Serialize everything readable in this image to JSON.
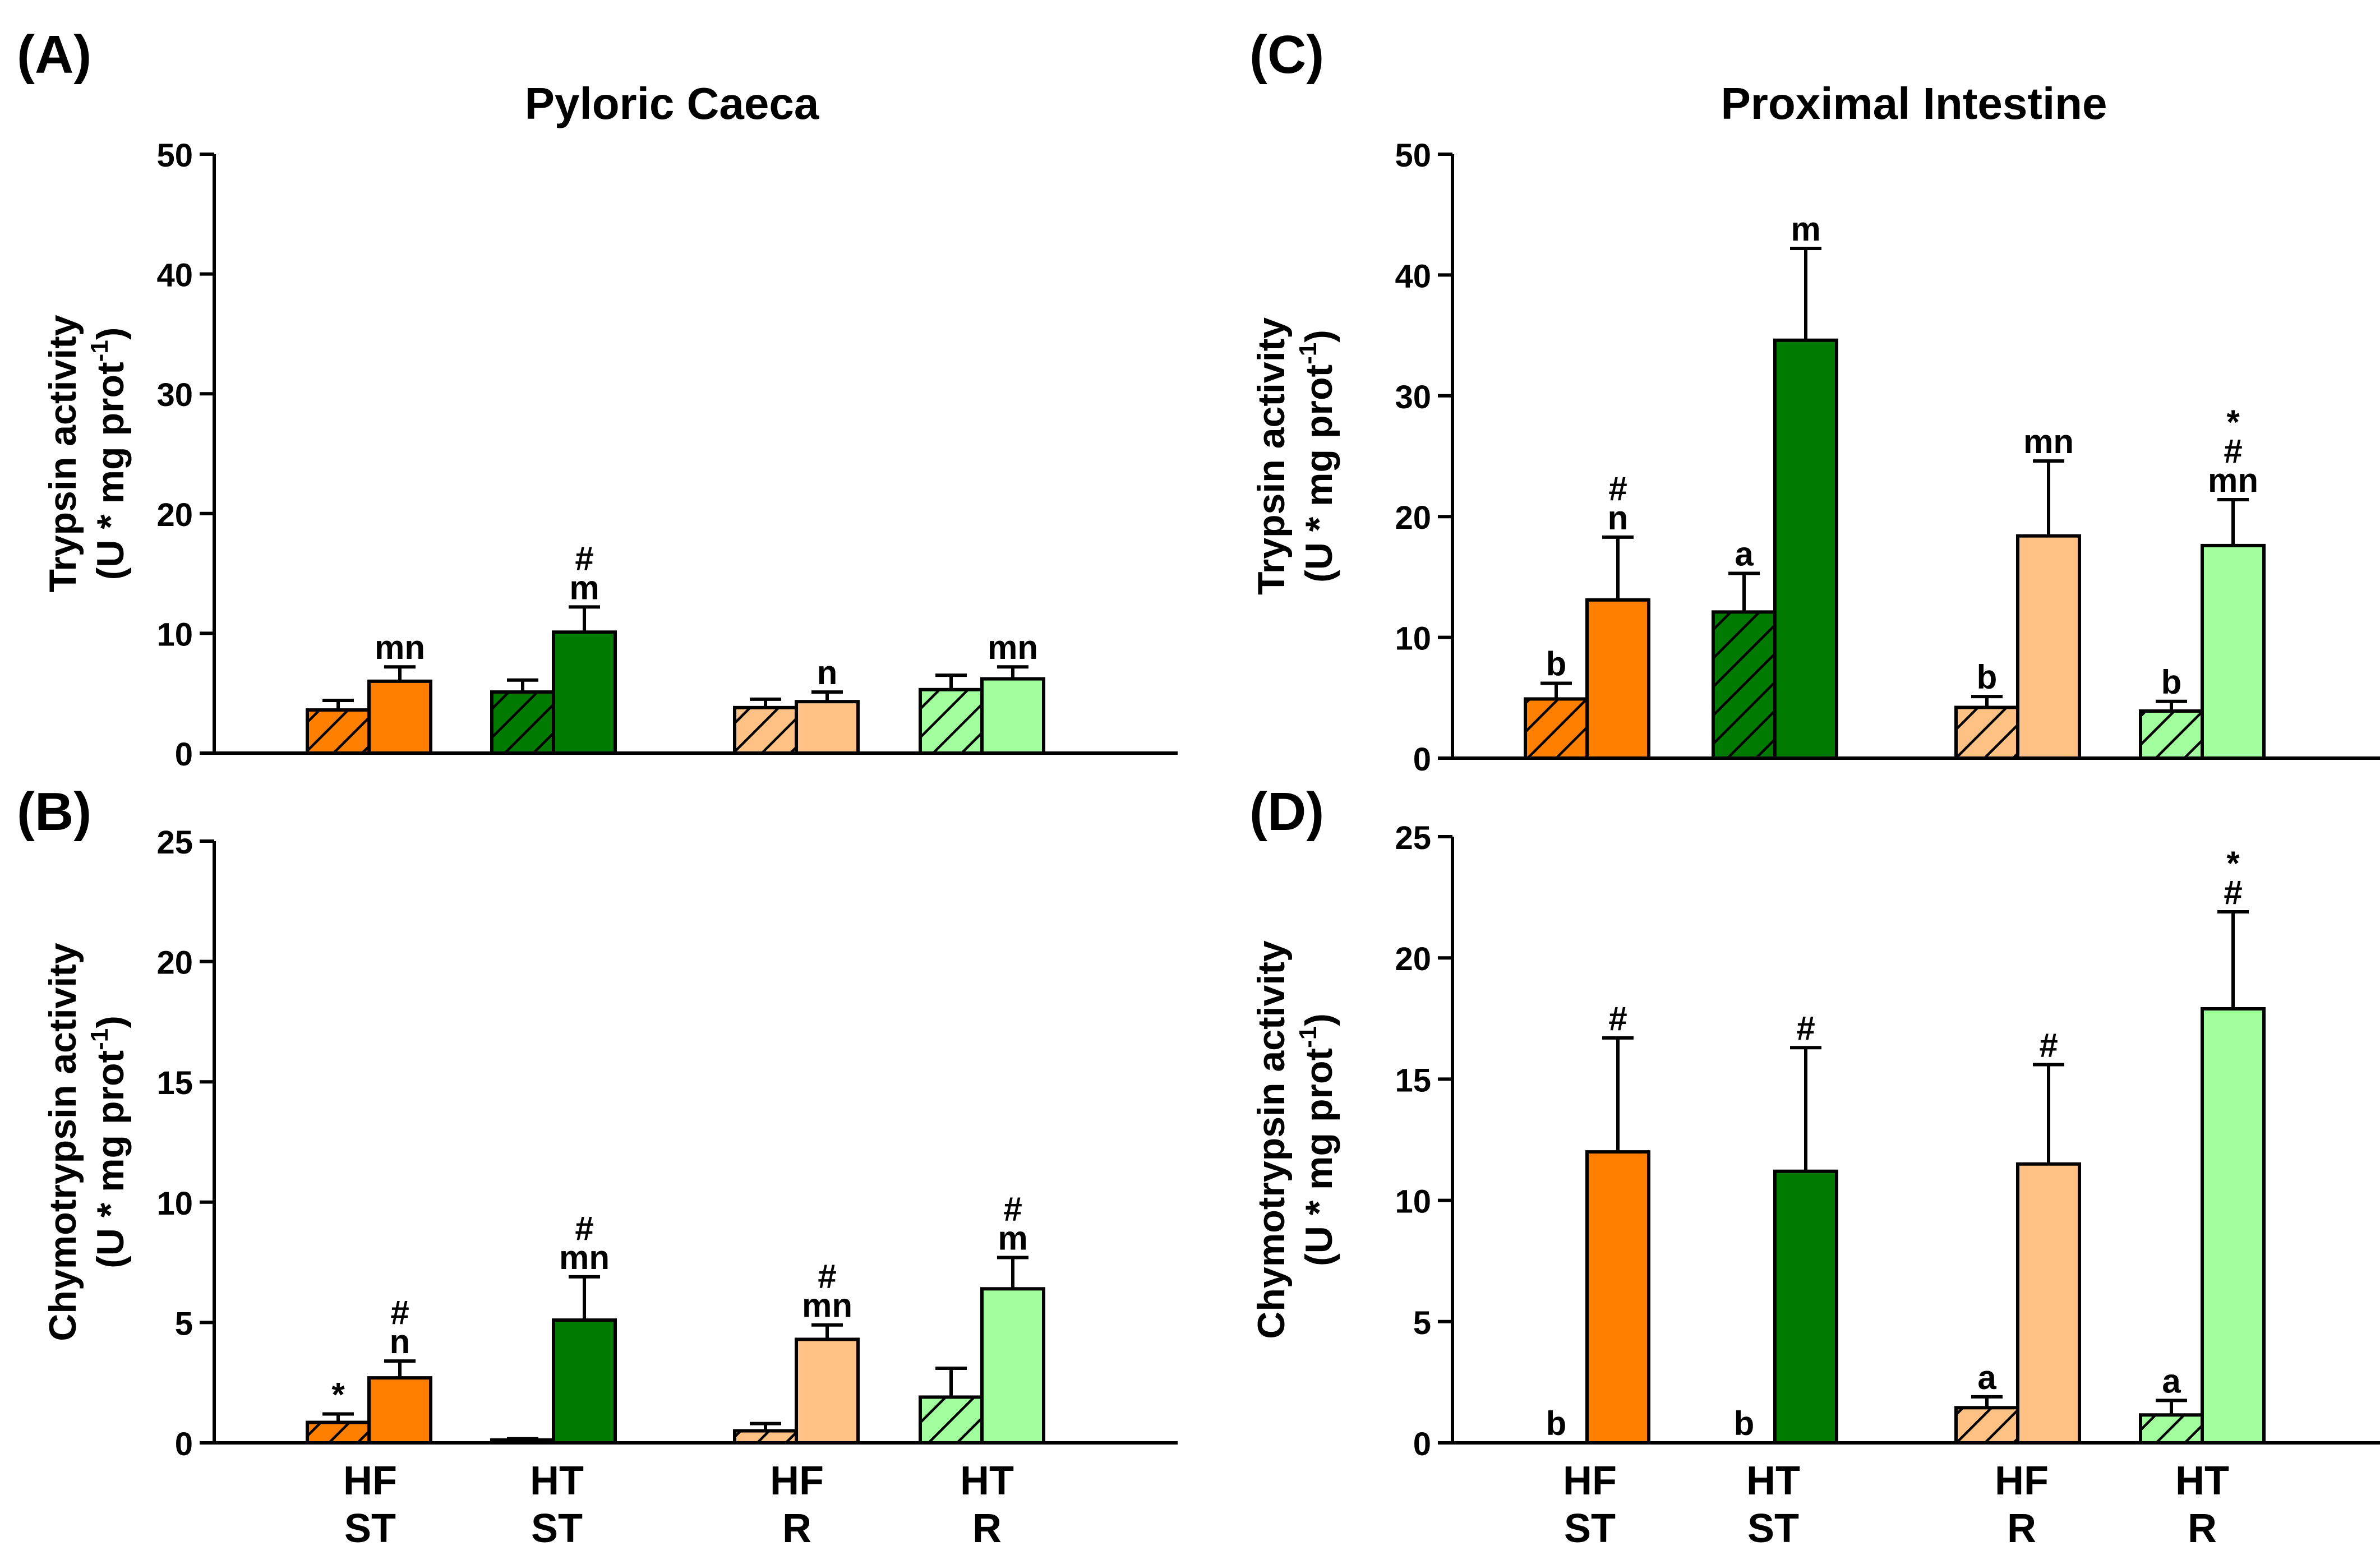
{
  "colors": {
    "hf_st": "#ff7f00",
    "ht_st": "#007a00",
    "hf_r": "#ffc184",
    "ht_r": "#a2ff9e",
    "axis": "#000000"
  },
  "chart_data": [
    {
      "panel": "(A)",
      "type": "bar",
      "title": "Pyloric Caeca",
      "ylabel_line1": "Trypsin activity",
      "ylabel_line2_base": "(U * mg prot",
      "ylabel_sup": "-1",
      "ylabel_close": ")",
      "ylim": [
        0,
        50
      ],
      "yticks": [
        0,
        10,
        20,
        30,
        40,
        50
      ],
      "groups": [
        {
          "hatched": {
            "value": 3.6,
            "error": 0.8,
            "label": ""
          },
          "solid": {
            "value": 6.0,
            "error": 1.2,
            "label": "mn"
          }
        },
        {
          "hatched": {
            "value": 5.1,
            "error": 1.0,
            "label": ""
          },
          "solid": {
            "value": 10.1,
            "error": 2.1,
            "label": "#\nm"
          }
        },
        {
          "hatched": {
            "value": 3.8,
            "error": 0.7,
            "label": ""
          },
          "solid": {
            "value": 4.3,
            "error": 0.8,
            "label": "n"
          }
        },
        {
          "hatched": {
            "value": 5.3,
            "error": 1.2,
            "label": ""
          },
          "solid": {
            "value": 6.2,
            "error": 1.0,
            "label": "mn"
          }
        }
      ]
    },
    {
      "panel": "(B)",
      "type": "bar",
      "title": "",
      "ylabel_line1": "Chymotrypsin activity",
      "ylabel_line2_base": "(U * mg prot",
      "ylabel_sup": "-1",
      "ylabel_close": ")",
      "ylim": [
        0,
        25
      ],
      "yticks": [
        0,
        5,
        10,
        15,
        20,
        25
      ],
      "groups": [
        {
          "hatched": {
            "value": 0.85,
            "error": 0.35,
            "label": "*"
          },
          "solid": {
            "value": 2.7,
            "error": 0.7,
            "label": "#\nn"
          }
        },
        {
          "hatched": {
            "value": 0.12,
            "error": 0.05,
            "label": ""
          },
          "solid": {
            "value": 5.1,
            "error": 1.8,
            "label": "#\nmn"
          }
        },
        {
          "hatched": {
            "value": 0.5,
            "error": 0.3,
            "label": ""
          },
          "solid": {
            "value": 4.3,
            "error": 0.6,
            "label": "#\nmn"
          }
        },
        {
          "hatched": {
            "value": 1.9,
            "error": 1.2,
            "label": ""
          },
          "solid": {
            "value": 6.4,
            "error": 1.3,
            "label": "#\nm"
          }
        }
      ]
    },
    {
      "panel": "(C)",
      "type": "bar",
      "title": "Proximal Intestine",
      "ylabel_line1": "Trypsin activity",
      "ylabel_line2_base": "(U * mg prot",
      "ylabel_sup": "-1",
      "ylabel_close": ")",
      "ylim": [
        0,
        50
      ],
      "yticks": [
        0,
        10,
        20,
        30,
        40,
        50
      ],
      "groups": [
        {
          "hatched": {
            "value": 4.9,
            "error": 1.3,
            "label": "b"
          },
          "solid": {
            "value": 13.1,
            "error": 5.2,
            "label": "#\nn"
          }
        },
        {
          "hatched": {
            "value": 12.1,
            "error": 3.2,
            "label": "a"
          },
          "solid": {
            "value": 34.6,
            "error": 7.6,
            "label": "m"
          }
        },
        {
          "hatched": {
            "value": 4.2,
            "error": 0.9,
            "label": "b"
          },
          "solid": {
            "value": 18.4,
            "error": 6.2,
            "label": "mn"
          }
        },
        {
          "hatched": {
            "value": 3.9,
            "error": 0.8,
            "label": "b"
          },
          "solid": {
            "value": 17.6,
            "error": 3.8,
            "label": "*\n#\nmn"
          }
        }
      ]
    },
    {
      "panel": "(D)",
      "type": "bar",
      "title": "",
      "ylabel_line1": "Chymotrypsin activity",
      "ylabel_line2_base": "(U * mg prot",
      "ylabel_sup": "-1",
      "ylabel_close": ")",
      "ylim": [
        0,
        25
      ],
      "yticks": [
        0,
        5,
        10,
        15,
        20,
        25
      ],
      "groups": [
        {
          "hatched": {
            "value": 0,
            "error": 0,
            "label": "b"
          },
          "solid": {
            "value": 12.0,
            "error": 4.7,
            "label": "#"
          }
        },
        {
          "hatched": {
            "value": 0,
            "error": 0,
            "label": "b"
          },
          "solid": {
            "value": 11.2,
            "error": 5.1,
            "label": "#"
          }
        },
        {
          "hatched": {
            "value": 1.45,
            "error": 0.45,
            "label": "a"
          },
          "solid": {
            "value": 11.5,
            "error": 4.1,
            "label": "#"
          }
        },
        {
          "hatched": {
            "value": 1.15,
            "error": 0.6,
            "label": "a"
          },
          "solid": {
            "value": 17.9,
            "error": 4.0,
            "label": "*\n#"
          }
        }
      ]
    }
  ],
  "categories": [
    {
      "line1": "HF",
      "line2": "ST"
    },
    {
      "line1": "HT",
      "line2": "ST"
    },
    {
      "line1": "HF",
      "line2": "R"
    },
    {
      "line1": "HT",
      "line2": "R"
    }
  ]
}
